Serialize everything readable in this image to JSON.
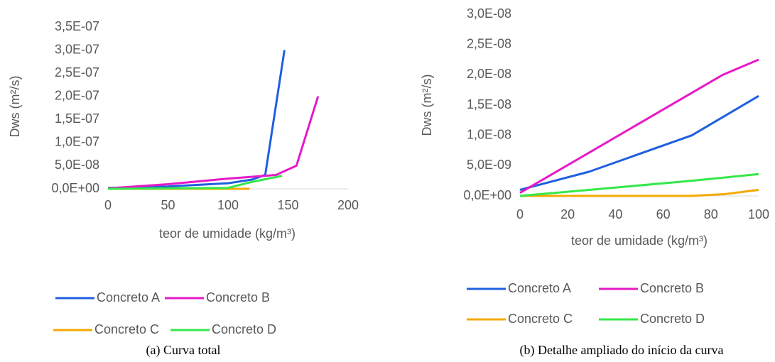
{
  "chart_data": [
    {
      "type": "line",
      "caption": "(a) Curva total",
      "x_label": "teor de umidade (kg/m³)",
      "y_label": "Dws (m²/s)",
      "xlim": [
        0,
        200
      ],
      "xticks": [
        0,
        50,
        100,
        150,
        200
      ],
      "ylim": [
        0,
        3.5e-07
      ],
      "yticks": [
        {
          "value": 0,
          "label": "0,0E+00"
        },
        {
          "value": 5e-08,
          "label": "5,0E-08"
        },
        {
          "value": 1e-07,
          "label": "1,0E-07"
        },
        {
          "value": 1.5e-07,
          "label": "1,5E-07"
        },
        {
          "value": 2e-07,
          "label": "2,0E-07"
        },
        {
          "value": 2.5e-07,
          "label": "2,5E-07"
        },
        {
          "value": 3e-07,
          "label": "3,0E-07"
        },
        {
          "value": 3.5e-07,
          "label": "3,5E-07"
        }
      ],
      "grid": false,
      "series": [
        {
          "name": "Concreto A",
          "color": "#1f5fe0",
          "x": [
            0,
            50,
            100,
            120,
            131,
            147
          ],
          "values": [
            2e-09,
            5e-09,
            1.2e-08,
            2e-08,
            3e-08,
            3e-07
          ]
        },
        {
          "name": "Concreto B",
          "color": "#e619c8",
          "x": [
            0,
            50,
            100,
            140,
            157,
            175
          ],
          "values": [
            1e-09,
            1e-08,
            2.2e-08,
            3e-08,
            5e-08,
            2e-07
          ]
        },
        {
          "name": "Concreto C",
          "color": "#f5a800",
          "x": [
            0,
            50,
            100,
            118
          ],
          "values": [
            0,
            0,
            0,
            0
          ]
        },
        {
          "name": "Concreto D",
          "color": "#33e84a",
          "x": [
            0,
            50,
            100,
            120,
            145
          ],
          "values": [
            0,
            1e-09,
            2e-09,
            1.5e-08,
            2.8e-08
          ]
        }
      ]
    },
    {
      "type": "line",
      "caption": "(b) Detalhe ampliado do início da curva",
      "x_label": "teor de umidade (kg/m³)",
      "y_label": "Dws (m²/s)",
      "xlim": [
        0,
        100
      ],
      "xticks": [
        0,
        20,
        40,
        60,
        80,
        100
      ],
      "ylim": [
        0,
        3e-08
      ],
      "yticks": [
        {
          "value": 0,
          "label": "0,0E+00"
        },
        {
          "value": 5e-09,
          "label": "5,0E-09"
        },
        {
          "value": 1e-08,
          "label": "1,0E-08"
        },
        {
          "value": 1.5e-08,
          "label": "1,5E-08"
        },
        {
          "value": 2e-08,
          "label": "2,0E-08"
        },
        {
          "value": 2.5e-08,
          "label": "2,5E-08"
        },
        {
          "value": 3e-08,
          "label": "3,0E-08"
        }
      ],
      "grid": false,
      "series": [
        {
          "name": "Concreto A",
          "color": "#1f5fe0",
          "x": [
            0,
            29,
            72,
            100
          ],
          "values": [
            1e-09,
            4e-09,
            1e-08,
            1.65e-08
          ]
        },
        {
          "name": "Concreto B",
          "color": "#e619c8",
          "x": [
            0,
            85,
            100
          ],
          "values": [
            5e-10,
            2e-08,
            2.25e-08
          ]
        },
        {
          "name": "Concreto C",
          "color": "#f5a800",
          "x": [
            0,
            29,
            72,
            86,
            100
          ],
          "values": [
            0,
            0,
            0,
            3e-10,
            1e-09
          ]
        },
        {
          "name": "Concreto D",
          "color": "#33e84a",
          "x": [
            0,
            29,
            72,
            100
          ],
          "values": [
            0,
            1e-09,
            2.5e-09,
            3.6e-09
          ]
        }
      ]
    }
  ]
}
